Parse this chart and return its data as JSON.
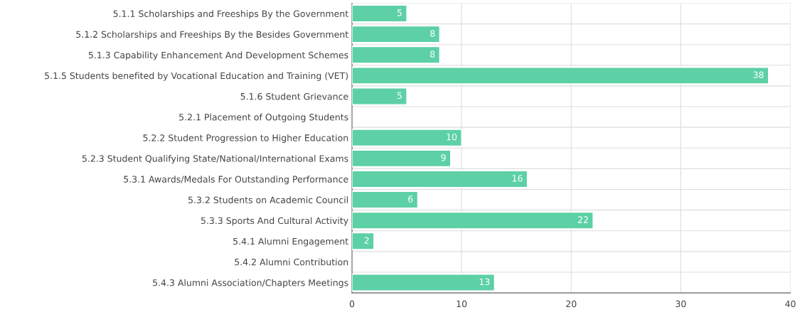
{
  "chart_data": {
    "type": "bar",
    "orientation": "horizontal",
    "categories": [
      "5.1.1 Scholarships and Freeships By the Government",
      "5.1.2 Scholarships and Freeships By the Besides Government",
      "5.1.3 Capability Enhancement And Development Schemes",
      "5.1.5 Students benefited by Vocational Education and Training (VET)",
      "5.1.6 Student Grievance",
      "5.2.1 Placement of Outgoing Students",
      "5.2.2 Student Progression to Higher Education",
      "5.2.3 Student Qualifying State/National/International Exams",
      "5.3.1 Awards/Medals For Outstanding Performance",
      "5.3.2 Students on Academic Council",
      "5.3.3 Sports And Cultural Activity",
      "5.4.1 Alumni Engagement",
      "5.4.2 Alumni Contribution",
      "5.4.3 Alumni Association/Chapters Meetings"
    ],
    "values": [
      5,
      8,
      8,
      38,
      5,
      null,
      10,
      9,
      16,
      6,
      22,
      2,
      null,
      13
    ],
    "color": "#5dd0a6",
    "xlim": [
      0,
      40
    ],
    "xticks": [
      0,
      10,
      20,
      30,
      40
    ],
    "data_labels": true,
    "grid": true
  }
}
